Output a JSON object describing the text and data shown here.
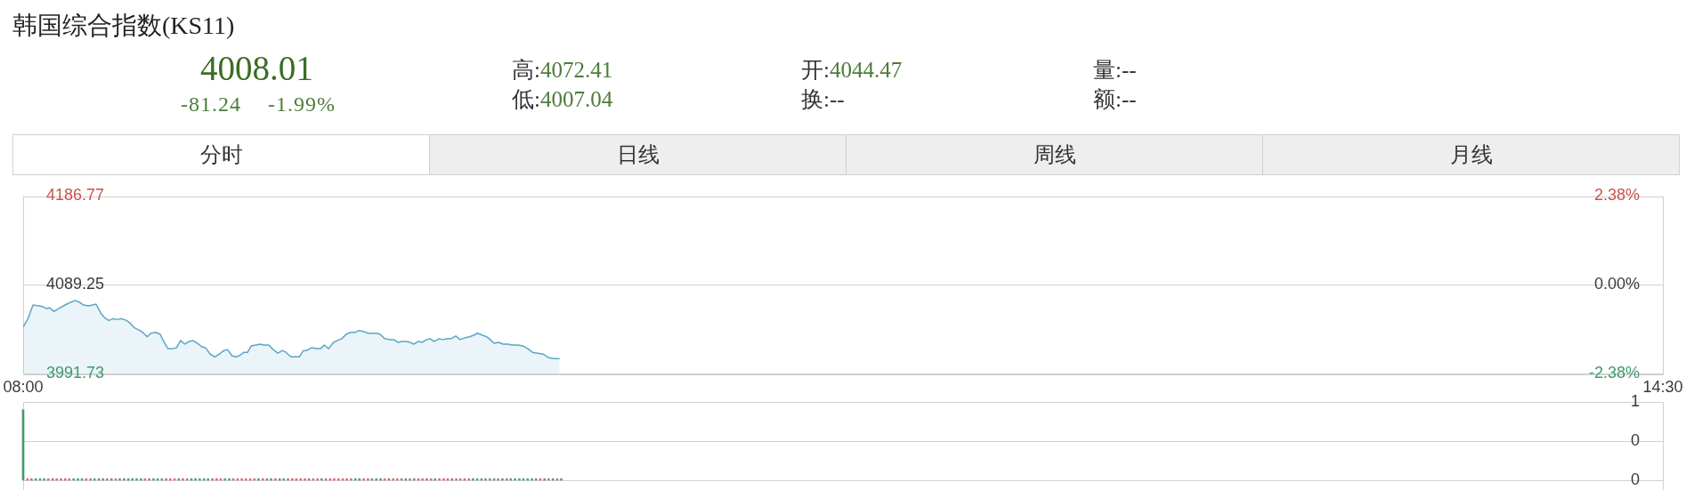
{
  "chart_data": [
    {
      "type": "other",
      "title": "韩国综合指数(KS11)",
      "annotations": [
        "4008.01",
        "-81.24",
        "-1.99%",
        "高:4072.41",
        "低:4007.04",
        "开:4044.47",
        "换:--",
        "量:--",
        "额:--",
        "分时",
        "日线",
        "周线",
        "月线"
      ]
    },
    {
      "type": "area",
      "color": "#5aa6c8",
      "x": [
        8,
        8.019,
        8.039,
        8.065,
        8.08,
        8.094,
        8.104,
        8.123,
        8.14,
        8.166,
        8.188,
        8.207,
        8.224,
        8.239,
        8.26,
        8.275,
        8.289,
        8.308,
        8.323,
        8.34,
        8.357,
        8.372,
        8.391,
        8.41,
        8.424,
        8.441,
        8.463,
        8.478,
        8.492,
        8.506,
        8.525,
        8.543,
        8.557,
        8.574,
        8.593,
        8.608,
        8.624,
        8.641,
        8.658,
        8.673,
        8.69,
        8.709,
        8.723,
        8.742,
        8.76,
        8.777,
        8.796,
        8.81,
        8.829,
        8.846,
        8.861,
        8.875,
        8.89,
        8.904,
        8.922,
        8.941,
        8.955,
        8.974,
        8.991,
        9.01,
        9.027,
        9.042,
        9.061,
        9.078,
        9.095,
        9.111,
        9.124,
        9.143,
        9.162,
        9.179,
        9.194,
        9.211,
        9.23,
        9.246,
        9.263,
        9.281,
        9.298,
        9.317,
        9.331,
        9.35,
        9.367,
        9.382,
        9.401,
        9.415,
        9.433,
        9.454,
        9.469,
        9.486,
        9.501,
        9.519,
        9.534,
        9.548,
        9.567,
        9.582,
        9.599,
        9.613,
        9.628,
        9.65,
        9.664,
        9.683,
        9.697,
        9.715,
        9.732,
        9.751,
        9.77,
        9.787,
        9.802,
        9.819,
        9.838,
        9.848,
        9.867,
        9.885,
        9.903,
        9.922,
        9.939,
        9.961,
        9.982,
        10.001,
        10.019,
        10.04,
        10.062,
        10.084,
        10.105,
        10.127
      ],
      "values": [
        4043,
        4052,
        4067,
        4066,
        4065,
        4063,
        4064,
        4060,
        4063,
        4067,
        4070,
        4072,
        4070,
        4067,
        4066,
        4067,
        4068,
        4058,
        4053,
        4050,
        4052,
        4051,
        4052,
        4050,
        4047,
        4042,
        4039,
        4036,
        4032,
        4036,
        4037,
        4035,
        4027,
        4019,
        4019,
        4020,
        4028,
        4024,
        4027,
        4028,
        4025,
        4021,
        4020,
        4013,
        4010,
        4013,
        4017,
        4018,
        4011,
        4010,
        4012,
        4015,
        4015,
        4022,
        4023,
        4024,
        4023,
        4023,
        4018,
        4014,
        4017,
        4015,
        4010,
        4010,
        4010,
        4017,
        4017,
        4020,
        4019,
        4019,
        4023,
        4019,
        4026,
        4028,
        4030,
        4035,
        4037,
        4037,
        4039,
        4038,
        4036,
        4036,
        4036,
        4035,
        4030,
        4029,
        4029,
        4026,
        4027,
        4027,
        4026,
        4024,
        4027,
        4026,
        4029,
        4030,
        4027,
        4030,
        4029,
        4030,
        4030,
        4033,
        4029,
        4031,
        4032,
        4034,
        4036,
        4034,
        4032,
        4030,
        4025,
        4026,
        4024,
        4024,
        4023,
        4023,
        4022,
        4019,
        4015,
        4014,
        4013,
        4009,
        4008,
        4008
      ],
      "xlim": [
        8,
        14.5
      ],
      "xticks": [
        {
          "value": 8,
          "label": "08:00"
        },
        {
          "value": 14.5,
          "label": "14:30"
        }
      ],
      "ylim": [
        3991.73,
        4186.77
      ],
      "yticks": [
        3991.73,
        4089.25,
        4186.77
      ],
      "y2lim": [
        -2.38,
        2.38
      ],
      "y2ticks": [
        {
          "value": -2.38,
          "label": "-2.38%"
        },
        {
          "value": 0,
          "label": "0.00%"
        },
        {
          "value": 2.38,
          "label": "2.38%"
        }
      ],
      "grid": "y"
    },
    {
      "type": "bar",
      "x": [
        8,
        8.017,
        8.033,
        8.05,
        8.067,
        8.083,
        8.1,
        8.117,
        8.133,
        8.15,
        8.167,
        8.183,
        8.2,
        8.217,
        8.233,
        8.25,
        8.267,
        8.283,
        8.3,
        8.317,
        8.333,
        8.35,
        8.367,
        8.383,
        8.4,
        8.417,
        8.433,
        8.45,
        8.467,
        8.483,
        8.5,
        8.517,
        8.533,
        8.55,
        8.567,
        8.583,
        8.6,
        8.617,
        8.633,
        8.65,
        8.667,
        8.683,
        8.7,
        8.717,
        8.733,
        8.75,
        8.767,
        8.783,
        8.8,
        8.817,
        8.833,
        8.85,
        8.867,
        8.883,
        8.9,
        8.917,
        8.933,
        8.95,
        8.967,
        8.983,
        9,
        9.017,
        9.033,
        9.05,
        9.067,
        9.083,
        9.1,
        9.117,
        9.133,
        9.15,
        9.167,
        9.183,
        9.2,
        9.217,
        9.233,
        9.25,
        9.267,
        9.283,
        9.3,
        9.317,
        9.333,
        9.35,
        9.367,
        9.383,
        9.4,
        9.417,
        9.433,
        9.45,
        9.467,
        9.483,
        9.5,
        9.517,
        9.533,
        9.55,
        9.567,
        9.583,
        9.6,
        9.617,
        9.633,
        9.65,
        9.667,
        9.683,
        9.7,
        9.717,
        9.733,
        9.75,
        9.767,
        9.783,
        9.8,
        9.817,
        9.833,
        9.85,
        9.867,
        9.883,
        9.9,
        9.917,
        9.933,
        9.95,
        9.967,
        9.983,
        10,
        10.017,
        10.033,
        10.05,
        10.067,
        10.083,
        10.1,
        10.117,
        10.133
      ],
      "values": [
        0.9,
        0.02,
        0.02,
        0.02,
        0.02,
        0.02,
        0.02,
        0.02,
        0.02,
        0.02,
        0.02,
        0.02,
        0.02,
        0.02,
        0.02,
        0.02,
        0.02,
        0.02,
        0.02,
        0.02,
        0.02,
        0.02,
        0.02,
        0.02,
        0.02,
        0.02,
        0.02,
        0.02,
        0.02,
        0.02,
        0.02,
        0.02,
        0.02,
        0.02,
        0.02,
        0.02,
        0.02,
        0.02,
        0.02,
        0.02,
        0.02,
        0.02,
        0.02,
        0.02,
        0.02,
        0.02,
        0.02,
        0.02,
        0.02,
        0.02,
        0.02,
        0.02,
        0.02,
        0.02,
        0.02,
        0.02,
        0.02,
        0.02,
        0.02,
        0.02,
        0.02,
        0.02,
        0.02,
        0.02,
        0.02,
        0.02,
        0.02,
        0.02,
        0.02,
        0.02,
        0.02,
        0.02,
        0.02,
        0.02,
        0.02,
        0.02,
        0.02,
        0.02,
        0.02,
        0.02,
        0.02,
        0.02,
        0.02,
        0.02,
        0.02,
        0.02,
        0.02,
        0.02,
        0.02,
        0.02,
        0.02,
        0.02,
        0.02,
        0.02,
        0.02,
        0.02,
        0.02,
        0.02,
        0.02,
        0.02,
        0.02,
        0.02,
        0.02,
        0.02,
        0.02,
        0.02,
        0.02,
        0.02,
        0.02,
        0.02,
        0.02,
        0.02,
        0.02,
        0.02,
        0.02,
        0.02,
        0.02,
        0.02,
        0.02,
        0.02,
        0.02,
        0.02,
        0.02,
        0.02,
        0.02,
        0.02,
        0.02,
        0.02,
        0.02
      ],
      "colors": [
        "#3f9a6e",
        "#e4686c",
        "#e4686c",
        "#48a57c",
        "#48a57c",
        "#48a57c",
        "#e4686c",
        "#48a57c",
        "#e4686c",
        "#e4686c",
        "#e4686c",
        "#e4686c",
        "#48a57c",
        "#48a57c",
        "#48a57c",
        "#e4686c",
        "#e4686c",
        "#48a57c",
        "#48a57c",
        "#48a57c",
        "#e4686c",
        "#48a57c",
        "#e4686c",
        "#48a57c",
        "#48a57c",
        "#48a57c",
        "#48a57c",
        "#48a57c",
        "#48a57c",
        "#e4686c",
        "#e4686c",
        "#48a57c",
        "#48a57c",
        "#48a57c",
        "#e4686c",
        "#e4686c",
        "#e4686c",
        "#48a57c",
        "#e4686c",
        "#e4686c",
        "#48a57c",
        "#48a57c",
        "#48a57c",
        "#48a57c",
        "#48a57c",
        "#e4686c",
        "#e4686c",
        "#e4686c",
        "#48a57c",
        "#48a57c",
        "#e4686c",
        "#e4686c",
        "#e4686c",
        "#e4686c",
        "#e4686c",
        "#e4686c",
        "#48a57c",
        "#e4686c",
        "#48a57c",
        "#48a57c",
        "#e4686c",
        "#48a57c",
        "#48a57c",
        "#e4686c",
        "#e4686c",
        "#e4686c",
        "#e4686c",
        "#e4686c",
        "#48a57c",
        "#e4686c",
        "#e4686c",
        "#48a57c",
        "#e4686c",
        "#e4686c",
        "#e4686c",
        "#e4686c",
        "#e4686c",
        "#e4686c",
        "#e4686c",
        "#48a57c",
        "#48a57c",
        "#e4686c",
        "#e4686c",
        "#48a57c",
        "#48a57c",
        "#48a57c",
        "#e4686c",
        "#48a57c",
        "#e4686c",
        "#e4686c",
        "#48a57c",
        "#48a57c",
        "#e4686c",
        "#48a57c",
        "#e4686c",
        "#e4686c",
        "#48a57c",
        "#e4686c",
        "#48a57c",
        "#e4686c",
        "#e4686c",
        "#e4686c",
        "#48a57c",
        "#e4686c",
        "#e4686c",
        "#e4686c",
        "#e4686c",
        "#48a57c",
        "#48a57c",
        "#48a57c",
        "#48a57c",
        "#e4686c",
        "#48a57c",
        "#e4686c",
        "#48a57c",
        "#e4686c",
        "#48a57c",
        "#48a57c",
        "#48a57c",
        "#48a57c",
        "#48a57c",
        "#48a57c",
        "#48a57c",
        "#e4686c",
        "#48a57c",
        "#e4686c",
        "#48a57c",
        "#e4686c",
        "#48a57c"
      ],
      "xlim": [
        8,
        14.5
      ],
      "ylim": [
        0,
        1
      ],
      "yticks": [
        0,
        {
          "value": 0.5,
          "label": "0"
        },
        1
      ],
      "grid": "y",
      "tick_labels": "y"
    }
  ]
}
